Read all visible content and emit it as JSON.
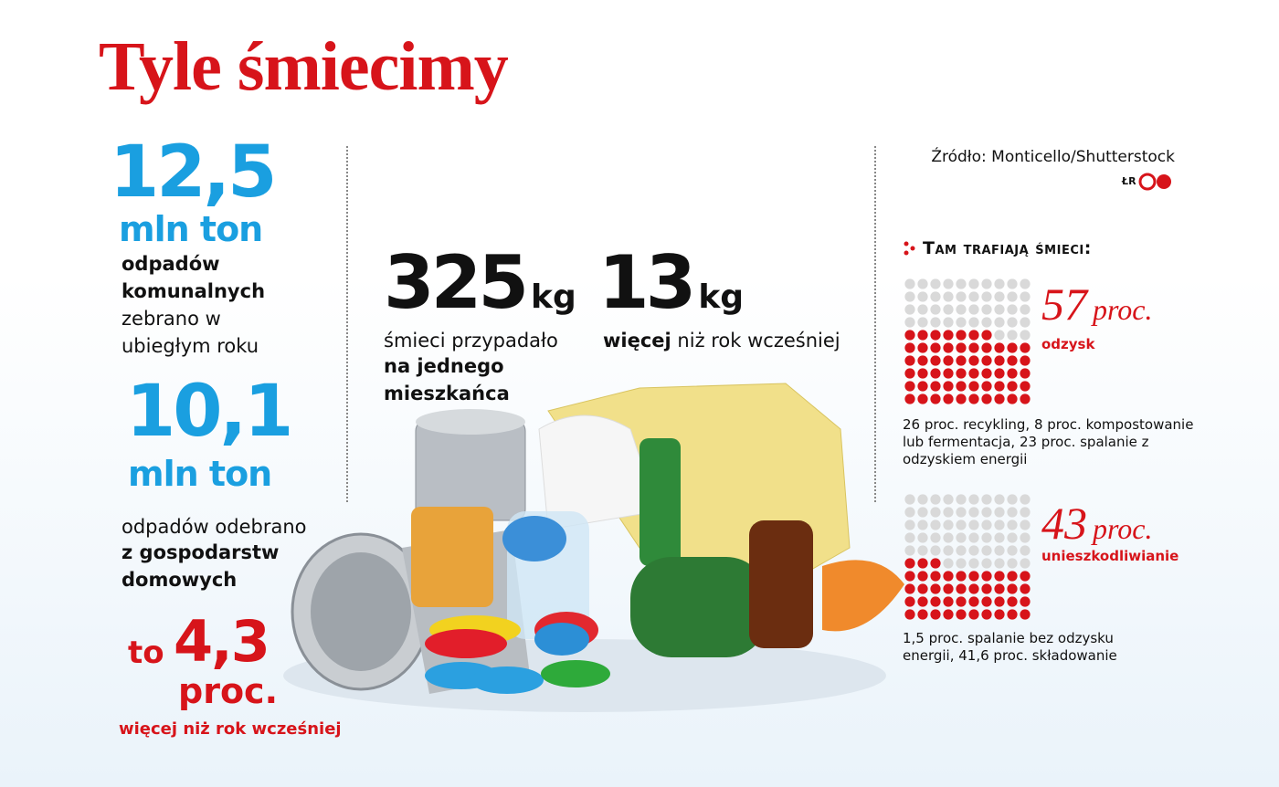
{
  "title": "Tyle śmiecimy",
  "source": "Źródło: Monticello/Shutterstock",
  "credit": "ŁR",
  "left": {
    "stat1": {
      "number": "12,5",
      "unit": "mln ton",
      "bold_text": "odpadów komunalnych",
      "text": "zebrano w ubiegłym roku"
    },
    "stat2": {
      "number": "10,1",
      "unit": "mln ton",
      "text": "odpadów odebrano",
      "bold_text": "z gospodarstw domowych"
    },
    "stat3": {
      "prefix": "to",
      "number": "4,3",
      "unit": "proc.",
      "text": "więcej niż rok wcześniej"
    }
  },
  "middle": {
    "stat1": {
      "number": "325",
      "unit": "kg",
      "text": "śmieci przypadało",
      "bold_text": "na jednego mieszkańca"
    },
    "stat2": {
      "number": "13",
      "unit": "kg",
      "bold_text": "więcej",
      "text": "niż rok wcześniej"
    }
  },
  "right": {
    "heading": "Tam trafiają śmieci:",
    "items": [
      {
        "value": 57,
        "unit": "proc.",
        "label": "odzysk",
        "description": "26 proc. recykling, 8 proc. kompostowanie lub fermentacja, 23 proc. spalanie z odzyskiem energii"
      },
      {
        "value": 43,
        "unit": "proc.",
        "label": "unieszkodliwianie",
        "description": "1,5 proc. spalanie bez odzysku energii, 41,6 proc. składowanie"
      }
    ]
  }
}
